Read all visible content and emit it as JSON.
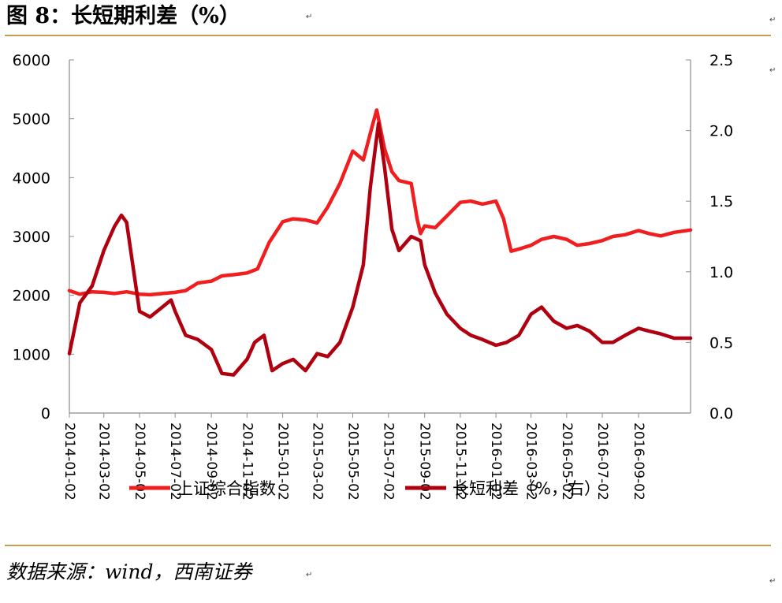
{
  "title": "图 8：长短期利差（%）",
  "source": "数据来源：wind，西南证券",
  "para_mark": "↵",
  "colors": {
    "index_line": "#f01e1e",
    "spread_line": "#b00010",
    "rule": "#c99a52",
    "axis": "#8c8c8c"
  },
  "chart_data": {
    "type": "line",
    "title": "长短期利差（%）",
    "x_tick_labels": [
      "2014-01-02",
      "2014-03-02",
      "2014-05-02",
      "2014-07-02",
      "2014-09-02",
      "2014-11-02",
      "2015-01-02",
      "2015-03-02",
      "2015-05-02",
      "2015-07-02",
      "2015-09-02",
      "2015-11-02",
      "2016-01-02",
      "2016-03-02",
      "2016-05-02",
      "2016-07-02",
      "2016-09-02"
    ],
    "x_range": [
      "2014-01-02",
      "2016-11-30"
    ],
    "y_left": {
      "min": 0,
      "max": 6000,
      "ticks": [
        "0",
        "1000",
        "2000",
        "3000",
        "4000",
        "5000",
        "6000"
      ]
    },
    "y_right": {
      "min": 0.0,
      "max": 2.5,
      "ticks": [
        "0.0",
        "0.5",
        "1.0",
        "1.5",
        "2.0",
        "2.5"
      ]
    },
    "legend_position": "bottom",
    "series": [
      {
        "name": "上证综合指数",
        "axis": "left",
        "x": [
          "2014-01-02",
          "2014-01-20",
          "2014-02-10",
          "2014-03-02",
          "2014-03-20",
          "2014-04-10",
          "2014-05-02",
          "2014-05-20",
          "2014-06-10",
          "2014-07-02",
          "2014-07-20",
          "2014-08-10",
          "2014-09-02",
          "2014-09-20",
          "2014-10-10",
          "2014-11-02",
          "2014-11-20",
          "2014-12-10",
          "2015-01-02",
          "2015-01-20",
          "2015-02-10",
          "2015-03-02",
          "2015-03-20",
          "2015-04-10",
          "2015-05-02",
          "2015-05-20",
          "2015-06-05",
          "2015-06-12",
          "2015-06-25",
          "2015-07-08",
          "2015-07-20",
          "2015-08-10",
          "2015-08-20",
          "2015-08-26",
          "2015-09-02",
          "2015-09-20",
          "2015-10-10",
          "2015-11-02",
          "2015-11-20",
          "2015-12-10",
          "2016-01-02",
          "2016-01-15",
          "2016-01-28",
          "2016-02-15",
          "2016-03-02",
          "2016-03-20",
          "2016-04-10",
          "2016-05-02",
          "2016-05-20",
          "2016-06-10",
          "2016-07-02",
          "2016-07-20",
          "2016-08-10",
          "2016-09-02",
          "2016-09-20",
          "2016-10-10",
          "2016-11-02",
          "2016-11-30"
        ],
        "values": [
          2080,
          2020,
          2060,
          2050,
          2030,
          2060,
          2020,
          2010,
          2030,
          2050,
          2080,
          2210,
          2240,
          2330,
          2350,
          2380,
          2450,
          2900,
          3250,
          3300,
          3280,
          3230,
          3500,
          3900,
          4450,
          4300,
          4900,
          5150,
          4500,
          4100,
          3950,
          3900,
          3300,
          3050,
          3180,
          3150,
          3350,
          3580,
          3600,
          3550,
          3600,
          3300,
          2750,
          2800,
          2850,
          2950,
          3000,
          2950,
          2850,
          2880,
          2930,
          3000,
          3030,
          3100,
          3050,
          3010,
          3070,
          3110
        ]
      },
      {
        "name": "长短利差（%，右）",
        "axis": "right",
        "x": [
          "2014-01-02",
          "2014-01-20",
          "2014-02-10",
          "2014-03-02",
          "2014-03-20",
          "2014-04-01",
          "2014-04-10",
          "2014-05-02",
          "2014-05-20",
          "2014-06-10",
          "2014-06-25",
          "2014-07-02",
          "2014-07-20",
          "2014-08-10",
          "2014-09-02",
          "2014-09-20",
          "2014-10-10",
          "2014-11-02",
          "2014-11-15",
          "2014-12-01",
          "2014-12-15",
          "2015-01-02",
          "2015-01-20",
          "2015-02-10",
          "2015-03-02",
          "2015-03-20",
          "2015-04-10",
          "2015-05-02",
          "2015-05-20",
          "2015-06-01",
          "2015-06-15",
          "2015-06-25",
          "2015-07-08",
          "2015-07-20",
          "2015-08-10",
          "2015-08-26",
          "2015-09-02",
          "2015-09-20",
          "2015-10-10",
          "2015-11-02",
          "2015-11-20",
          "2015-12-10",
          "2016-01-02",
          "2016-01-20",
          "2016-02-10",
          "2016-03-02",
          "2016-03-20",
          "2016-04-10",
          "2016-05-02",
          "2016-05-20",
          "2016-06-10",
          "2016-07-02",
          "2016-07-20",
          "2016-08-10",
          "2016-09-02",
          "2016-09-20",
          "2016-10-10",
          "2016-11-02",
          "2016-11-30"
        ],
        "values": [
          0.42,
          0.78,
          0.9,
          1.15,
          1.32,
          1.4,
          1.35,
          0.72,
          0.68,
          0.75,
          0.8,
          0.72,
          0.55,
          0.52,
          0.45,
          0.28,
          0.27,
          0.38,
          0.5,
          0.55,
          0.3,
          0.35,
          0.38,
          0.3,
          0.42,
          0.4,
          0.5,
          0.75,
          1.05,
          1.6,
          2.05,
          1.75,
          1.3,
          1.15,
          1.25,
          1.22,
          1.05,
          0.85,
          0.7,
          0.6,
          0.55,
          0.52,
          0.48,
          0.5,
          0.55,
          0.7,
          0.75,
          0.65,
          0.6,
          0.62,
          0.58,
          0.5,
          0.5,
          0.55,
          0.6,
          0.58,
          0.56,
          0.53,
          0.53
        ]
      }
    ]
  }
}
